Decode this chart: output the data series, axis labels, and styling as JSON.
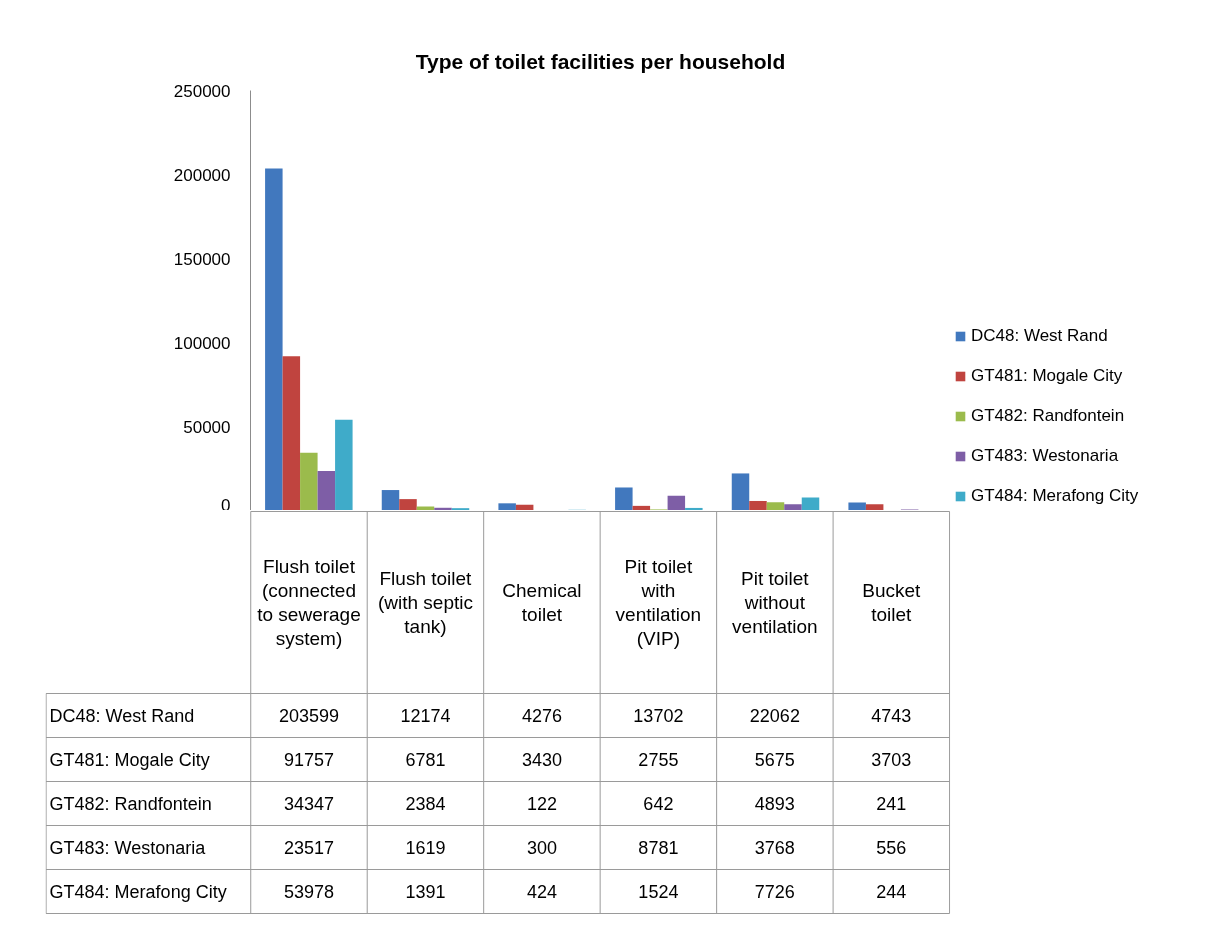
{
  "chart_data": {
    "type": "bar",
    "title": "Type of toilet facilities per household",
    "categories": [
      "Flush toilet (connected to sewerage system)",
      "Flush toilet (with septic tank)",
      "Chemical toilet",
      "Pit toilet with ventilation (VIP)",
      "Pit toilet without ventilation",
      "Bucket toilet"
    ],
    "series": [
      {
        "name": "DC48: West Rand",
        "color": "#4178be",
        "values": [
          203599,
          12174,
          4276,
          13702,
          22062,
          4743
        ]
      },
      {
        "name": "GT481: Mogale City",
        "color": "#c0443f",
        "values": [
          91757,
          6781,
          3430,
          2755,
          5675,
          3703
        ]
      },
      {
        "name": "GT482: Randfontein",
        "color": "#9bbb4c",
        "values": [
          34347,
          2384,
          122,
          642,
          4893,
          241
        ]
      },
      {
        "name": "GT483: Westonaria",
        "color": "#7e5ea6",
        "values": [
          23517,
          1619,
          300,
          8781,
          3768,
          556
        ]
      },
      {
        "name": "GT484: Merafong City",
        "color": "#3fabc9",
        "values": [
          53978,
          1391,
          424,
          1524,
          7726,
          244
        ]
      }
    ],
    "ylim": [
      0,
      250000
    ],
    "yticks": [
      0,
      50000,
      100000,
      150000,
      200000,
      250000
    ],
    "data_labels": true,
    "legend": "right"
  }
}
